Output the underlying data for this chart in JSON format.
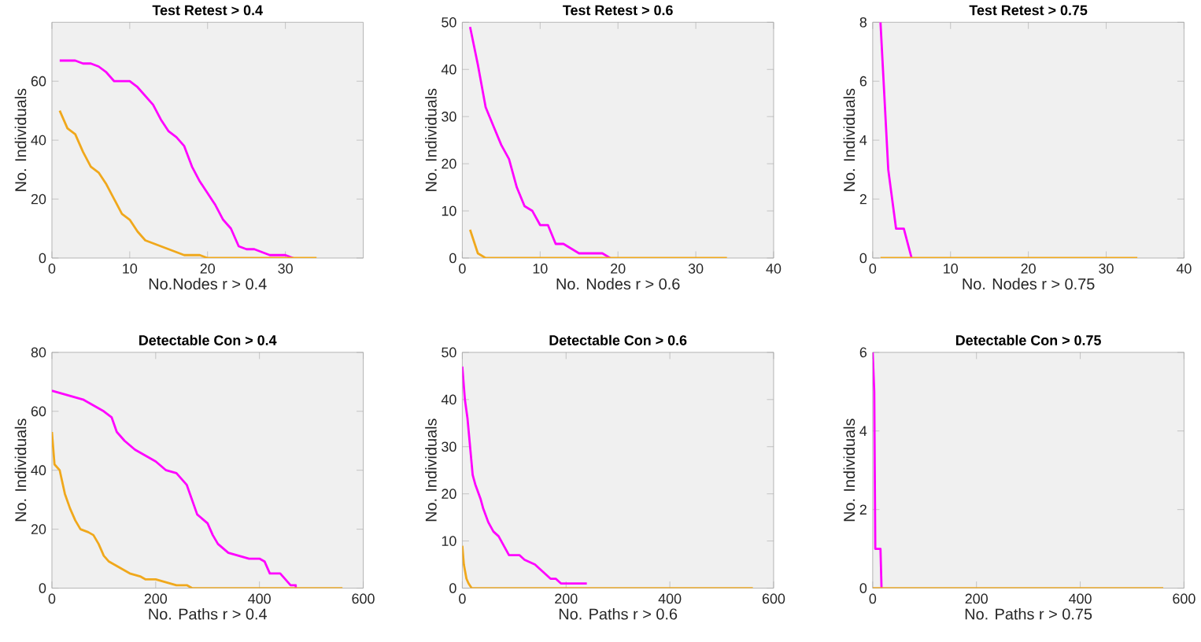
{
  "chart_data": [
    {
      "type": "line",
      "title": "Test Retest > 0.4",
      "xlabel": "No.Nodes r > 0.4",
      "ylabel": "No. Individuals",
      "xlim": [
        0,
        40
      ],
      "xticks": [
        0,
        10,
        20,
        30
      ],
      "ylim": [
        0,
        80
      ],
      "yticks": [
        0,
        20,
        40,
        60
      ],
      "series": [
        {
          "color": "#ff00ff",
          "x": [
            1,
            2,
            3,
            4,
            5,
            6,
            7,
            8,
            9,
            10,
            11,
            12,
            13,
            14,
            15,
            16,
            17,
            18,
            19,
            20,
            21,
            22,
            23,
            24,
            25,
            26,
            27,
            28,
            29,
            30,
            31
          ],
          "values": [
            67,
            67,
            67,
            66,
            66,
            65,
            63,
            60,
            60,
            60,
            58,
            55,
            52,
            47,
            43,
            41,
            38,
            31,
            26,
            22,
            18,
            13,
            10,
            4,
            3,
            3,
            2,
            1,
            1,
            1,
            0
          ]
        },
        {
          "color": "#f0a81c",
          "x": [
            1,
            2,
            3,
            4,
            5,
            6,
            7,
            8,
            9,
            10,
            11,
            12,
            13,
            14,
            15,
            16,
            17,
            18,
            19,
            20,
            21,
            22,
            23,
            24,
            25,
            26,
            27,
            28,
            29,
            30,
            31,
            32,
            33,
            34
          ],
          "values": [
            50,
            44,
            42,
            36,
            31,
            29,
            25,
            20,
            15,
            13,
            9,
            6,
            5,
            4,
            3,
            2,
            1,
            1,
            1,
            0,
            0,
            0,
            0,
            0,
            0,
            0,
            0,
            0,
            0,
            0,
            0,
            0,
            0,
            0
          ]
        }
      ]
    },
    {
      "type": "line",
      "title": "Test Retest > 0.6",
      "xlabel": "No. Nodes r > 0.6",
      "ylabel": "No. Individuals",
      "xlim": [
        0,
        40
      ],
      "xticks": [
        0,
        10,
        20,
        30,
        40
      ],
      "ylim": [
        0,
        50
      ],
      "yticks": [
        0,
        10,
        20,
        30,
        40,
        50
      ],
      "series": [
        {
          "color": "#ff00ff",
          "x": [
            1,
            2,
            3,
            4,
            5,
            6,
            7,
            8,
            9,
            10,
            11,
            12,
            13,
            14,
            15,
            16,
            17,
            18,
            19
          ],
          "values": [
            49,
            41,
            32,
            28,
            24,
            21,
            15,
            11,
            10,
            7,
            7,
            3,
            3,
            2,
            1,
            1,
            1,
            1,
            0
          ]
        },
        {
          "color": "#f0a81c",
          "x": [
            1,
            2,
            3,
            34
          ],
          "values": [
            6,
            1,
            0,
            0
          ]
        }
      ]
    },
    {
      "type": "line",
      "title": "Test Retest > 0.75",
      "xlabel": "No. Nodes r > 0.75",
      "ylabel": "No. Individuals",
      "xlim": [
        0,
        40
      ],
      "xticks": [
        0,
        10,
        20,
        30,
        40
      ],
      "ylim": [
        0,
        8
      ],
      "yticks": [
        0,
        2,
        4,
        6,
        8
      ],
      "series": [
        {
          "color": "#ff00ff",
          "x": [
            1,
            2,
            3,
            4,
            5
          ],
          "values": [
            8,
            3,
            1,
            1,
            0
          ]
        },
        {
          "color": "#f0a81c",
          "x": [
            1,
            34
          ],
          "values": [
            0,
            0
          ]
        }
      ]
    },
    {
      "type": "line",
      "title": "Detectable Con > 0.4",
      "xlabel": "No. Paths r > 0.4",
      "ylabel": "No. Individuals",
      "xlim": [
        0,
        600
      ],
      "xticks": [
        0,
        200,
        400,
        600
      ],
      "ylim": [
        0,
        80
      ],
      "yticks": [
        0,
        20,
        40,
        60,
        80
      ],
      "series": [
        {
          "color": "#ff00ff",
          "x": [
            0,
            20,
            40,
            60,
            80,
            100,
            115,
            125,
            140,
            160,
            180,
            200,
            220,
            240,
            260,
            270,
            280,
            300,
            310,
            320,
            340,
            360,
            380,
            400,
            410,
            420,
            440,
            450,
            460,
            470,
            470
          ],
          "values": [
            67,
            66,
            65,
            64,
            62,
            60,
            58,
            53,
            50,
            47,
            45,
            43,
            40,
            39,
            35,
            30,
            25,
            22,
            18,
            15,
            12,
            11,
            10,
            10,
            9,
            5,
            5,
            3,
            1,
            1,
            0
          ]
        },
        {
          "color": "#f0a81c",
          "x": [
            0,
            5,
            15,
            25,
            35,
            45,
            55,
            70,
            80,
            90,
            100,
            110,
            130,
            150,
            170,
            180,
            200,
            220,
            240,
            260,
            270,
            560
          ],
          "values": [
            53,
            42,
            40,
            32,
            27,
            23,
            20,
            19,
            18,
            15,
            11,
            9,
            7,
            5,
            4,
            3,
            3,
            2,
            1,
            1,
            0,
            0
          ]
        }
      ]
    },
    {
      "type": "line",
      "title": "Detectable Con > 0.6",
      "xlabel": "No. Paths r > 0.6",
      "ylabel": "No. Individuals",
      "xlim": [
        0,
        600
      ],
      "xticks": [
        0,
        200,
        400,
        600
      ],
      "ylim": [
        0,
        50
      ],
      "yticks": [
        0,
        10,
        20,
        30,
        40,
        50
      ],
      "series": [
        {
          "color": "#ff00ff",
          "x": [
            0,
            5,
            10,
            15,
            20,
            25,
            35,
            40,
            50,
            60,
            70,
            80,
            90,
            110,
            120,
            140,
            150,
            160,
            170,
            180,
            190,
            240
          ],
          "values": [
            47,
            40,
            36,
            30,
            24,
            22,
            19,
            17,
            14,
            12,
            11,
            9,
            7,
            7,
            6,
            5,
            4,
            3,
            2,
            2,
            1,
            1
          ]
        },
        {
          "color": "#f0a81c",
          "x": [
            0,
            3,
            8,
            12,
            18,
            560
          ],
          "values": [
            9,
            5,
            2,
            1,
            0,
            0
          ]
        }
      ]
    },
    {
      "type": "line",
      "title": "Detectable Con > 0.75",
      "xlabel": "No. Paths r > 0.75",
      "ylabel": "No. Individuals",
      "xlim": [
        0,
        600
      ],
      "xticks": [
        0,
        200,
        400,
        600
      ],
      "ylim": [
        0,
        6
      ],
      "yticks": [
        0,
        2,
        4,
        6
      ],
      "series": [
        {
          "color": "#ff00ff",
          "x": [
            0,
            3,
            5,
            15,
            17
          ],
          "values": [
            6,
            5,
            1,
            1,
            0
          ]
        },
        {
          "color": "#f0a81c",
          "x": [
            0,
            560
          ],
          "values": [
            0,
            0
          ]
        }
      ]
    }
  ]
}
